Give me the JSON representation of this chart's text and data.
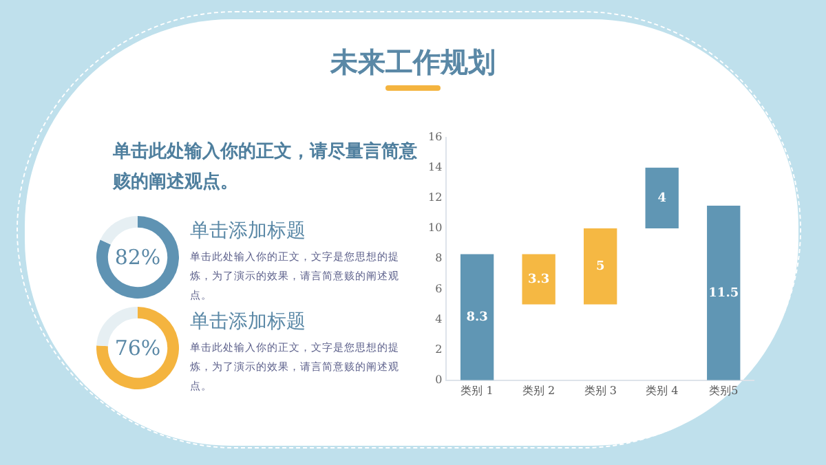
{
  "chart_data": [
    {
      "type": "other",
      "title": "未来工作规划",
      "annotations": [
        "单击此处输入你的正文，请尽量言简意赅的阐述观点。"
      ]
    },
    {
      "type": "donut",
      "title": "单击添加标题",
      "categories": [
        null,
        null
      ],
      "values": [
        82,
        18
      ],
      "colors": [
        "#5f93b3",
        "#e6eff3"
      ],
      "value_labels": [
        "82%",
        null
      ],
      "annotations": [
        "单击此处输入你的正文，文字是您思想的提炼，为了演示的效果，请言简意赅的阐述观点。"
      ]
    },
    {
      "type": "donut",
      "title": "单击添加标题",
      "categories": [
        null,
        null
      ],
      "values": [
        76,
        24
      ],
      "colors": [
        "#f4b43f",
        "#e6eff3"
      ],
      "value_labels": [
        "76%",
        null
      ],
      "annotations": [
        "单击此处输入你的正文，文字是您思想的提炼，为了演示的效果，请言简意赅的阐述观点。"
      ]
    },
    {
      "type": "bar",
      "categories": [
        "类别 1",
        "类别 2",
        "类别 3",
        "类别 4",
        "类别5"
      ],
      "values": [
        8.3,
        3.3,
        5,
        4,
        11.5
      ],
      "base": [
        0,
        5,
        5,
        10,
        0
      ],
      "colors": [
        "#6096b4",
        "#f5b843",
        "#f5b843",
        "#6096b4",
        "#6096b4"
      ],
      "ylim": [
        0,
        16
      ],
      "yticks": [
        0,
        2,
        4,
        6,
        8,
        10,
        12,
        14,
        16
      ],
      "data_labels": true,
      "grid": false,
      "legend": false
    }
  ]
}
